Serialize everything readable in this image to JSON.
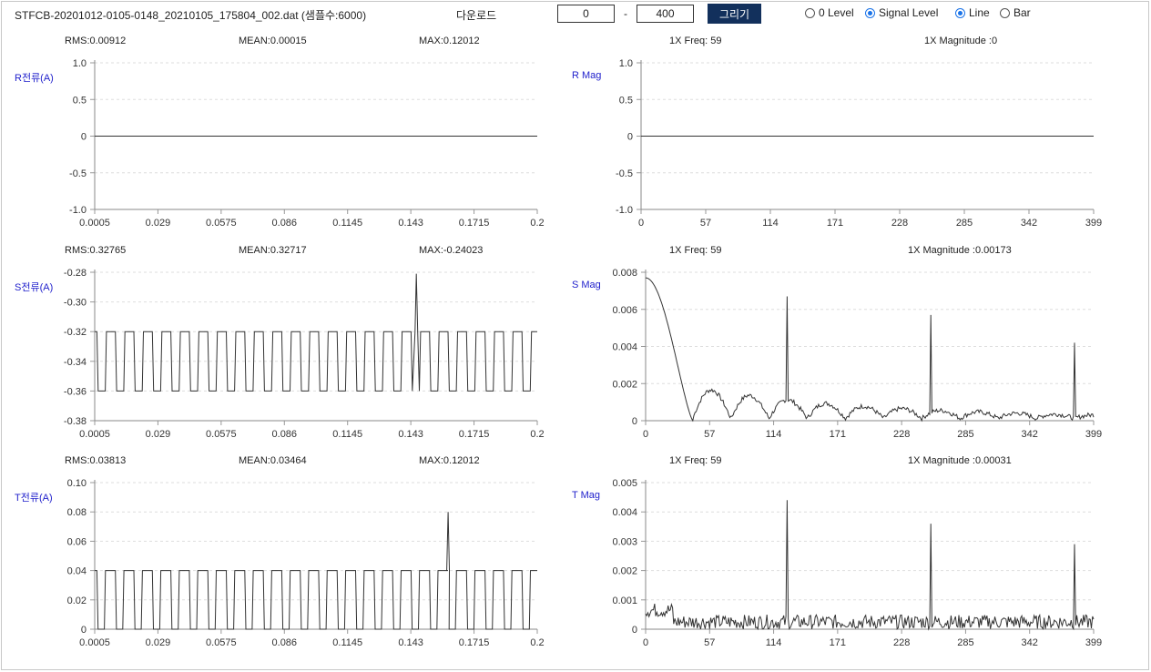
{
  "toolbar": {
    "filename": "STFCB-20201012-0105-0148_20210105_175804_002.dat (샘플수:6000)",
    "download_label": "다운로드",
    "range_start": "0",
    "range_separator": "-",
    "range_end": "400",
    "draw_label": "그리기",
    "level_options": [
      {
        "label": "0 Level",
        "checked": false
      },
      {
        "label": "Signal Level",
        "checked": true
      }
    ],
    "type_options": [
      {
        "label": "Line",
        "checked": true
      },
      {
        "label": "Bar",
        "checked": false
      }
    ]
  },
  "stats": {
    "r": {
      "rms": "RMS:0.00912",
      "mean": "MEAN:0.00015",
      "max": "MAX:0.12012"
    },
    "s": {
      "rms": "RMS:0.32765",
      "mean": "MEAN:0.32717",
      "max": "MAX:-0.24023"
    },
    "t": {
      "rms": "RMS:0.03813",
      "mean": "MEAN:0.03464",
      "max": "MAX:0.12012"
    },
    "r_fft": {
      "freq": "1X Freq: 59",
      "mag": "1X Magnitude :0"
    },
    "s_fft": {
      "freq": "1X Freq: 59",
      "mag": "1X Magnitude :0.00173"
    },
    "t_fft": {
      "freq": "1X Freq: 59",
      "mag": "1X Magnitude :0.00031"
    }
  },
  "labels": {
    "r_current": "R전류(A)",
    "s_current": "S전류(A)",
    "t_current": "T전류(A)",
    "r_mag": "R Mag",
    "s_mag": "S Mag",
    "t_mag": "T Mag"
  },
  "chart_data": [
    {
      "id": "r-current",
      "type": "line",
      "ylabel": "R전류(A)",
      "xlim": [
        0.0005,
        0.2
      ],
      "ylim": [
        -1.0,
        1.0
      ],
      "xticks": [
        "0.0005",
        "0.029",
        "0.0575",
        "0.086",
        "0.1145",
        "0.143",
        "0.1715",
        "0.2"
      ],
      "yticks": [
        "1.0",
        "0.5",
        "0",
        "-0.5",
        "-1.0"
      ],
      "grid": true,
      "signal": {
        "kind": "flat",
        "value": 0
      }
    },
    {
      "id": "r-mag",
      "type": "line",
      "ylabel": "R Mag",
      "xlim": [
        0,
        399
      ],
      "ylim": [
        -1.0,
        1.0
      ],
      "xticks": [
        "0",
        "57",
        "114",
        "171",
        "228",
        "285",
        "342",
        "399"
      ],
      "yticks": [
        "1.0",
        "0.5",
        "0",
        "-0.5",
        "-1.0"
      ],
      "grid": true,
      "signal": {
        "kind": "flat",
        "value": 0
      }
    },
    {
      "id": "s-current",
      "type": "line",
      "ylabel": "S전류(A)",
      "xlim": [
        0.0005,
        0.2
      ],
      "ylim": [
        -0.38,
        -0.28
      ],
      "xticks": [
        "0.0005",
        "0.029",
        "0.0575",
        "0.086",
        "0.1145",
        "0.143",
        "0.1715",
        "0.2"
      ],
      "yticks": [
        "-0.28",
        "-0.30",
        "-0.32",
        "-0.34",
        "-0.36",
        "-0.38"
      ],
      "grid": true,
      "signal": {
        "kind": "square",
        "high": -0.32,
        "low": -0.36,
        "period": 0.00833,
        "low_duty": 0.45,
        "spike_x": 0.1455,
        "spike_y": -0.281
      }
    },
    {
      "id": "s-mag",
      "type": "line",
      "ylabel": "S Mag",
      "xlim": [
        0,
        399
      ],
      "ylim": [
        0,
        0.008
      ],
      "xticks": [
        "0",
        "57",
        "114",
        "171",
        "228",
        "285",
        "342",
        "399"
      ],
      "yticks": [
        "0.008",
        "0.006",
        "0.004",
        "0.002",
        "0"
      ],
      "grid": true,
      "signal": {
        "kind": "spectrum",
        "start": 0.0077,
        "zero_at": 42,
        "noise": 0.00025,
        "spikes": [
          [
            126,
            0.0067
          ],
          [
            254,
            0.0057
          ],
          [
            382,
            0.0042
          ]
        ]
      }
    },
    {
      "id": "t-current",
      "type": "line",
      "ylabel": "T전류(A)",
      "xlim": [
        0.0005,
        0.2
      ],
      "ylim": [
        0,
        0.1
      ],
      "xticks": [
        "0.0005",
        "0.029",
        "0.0575",
        "0.086",
        "0.1145",
        "0.143",
        "0.1715",
        "0.2"
      ],
      "yticks": [
        "0.10",
        "0.08",
        "0.06",
        "0.04",
        "0.02",
        "0"
      ],
      "grid": true,
      "signal": {
        "kind": "square",
        "high": 0.04,
        "low": 0.0,
        "period": 0.00833,
        "low_duty": 0.4,
        "spike_x": 0.1598,
        "spike_y": 0.08
      }
    },
    {
      "id": "t-mag",
      "type": "line",
      "ylabel": "T Mag",
      "xlim": [
        0,
        399
      ],
      "ylim": [
        0,
        0.005
      ],
      "xticks": [
        "0",
        "57",
        "114",
        "171",
        "228",
        "285",
        "342",
        "399"
      ],
      "yticks": [
        "0.005",
        "0.004",
        "0.003",
        "0.002",
        "0.001",
        "0"
      ],
      "grid": true,
      "signal": {
        "kind": "noise_spectrum",
        "noise": 0.00035,
        "spikes": [
          [
            126,
            0.0044
          ],
          [
            254,
            0.0036
          ],
          [
            382,
            0.0029
          ]
        ]
      }
    }
  ]
}
